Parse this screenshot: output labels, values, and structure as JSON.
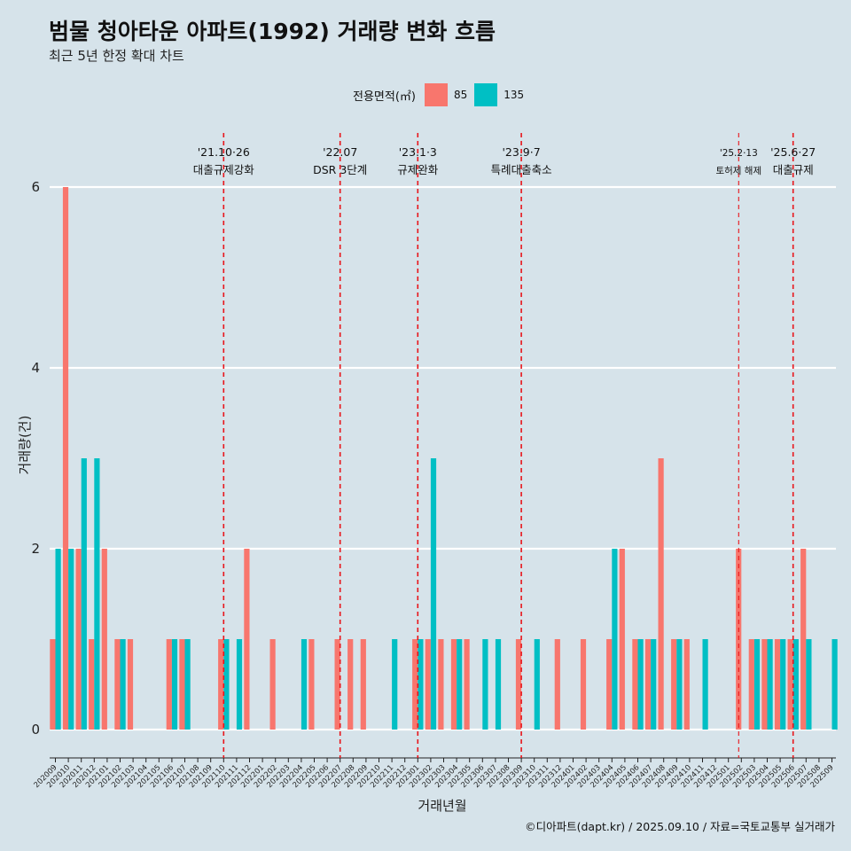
{
  "chart_data": {
    "type": "bar",
    "title": "범물 청아타운 아파트(1992) 거래량 변화 흐름",
    "subtitle": "최근 5년 한정 확대 차트",
    "xlabel": "거래년월",
    "ylabel": "거래량(건)",
    "ylim": [
      0,
      6
    ],
    "yticks": [
      0,
      2,
      4,
      6
    ],
    "grid": "horizontal",
    "legend": {
      "title": "전용면적(㎡)",
      "position": "top"
    },
    "categories": [
      "202009",
      "202010",
      "202011",
      "202012",
      "202101",
      "202102",
      "202103",
      "202104",
      "202105",
      "202106",
      "202107",
      "202108",
      "202109",
      "202110",
      "202111",
      "202112",
      "202201",
      "202202",
      "202203",
      "202204",
      "202205",
      "202206",
      "202207",
      "202208",
      "202209",
      "202210",
      "202211",
      "202212",
      "202301",
      "202302",
      "202303",
      "202304",
      "202305",
      "202306",
      "202307",
      "202308",
      "202309",
      "202310",
      "202311",
      "202312",
      "202401",
      "202402",
      "202403",
      "202404",
      "202405",
      "202406",
      "202407",
      "202408",
      "202409",
      "202410",
      "202411",
      "202412",
      "202501",
      "202502",
      "202503",
      "202504",
      "202505",
      "202506",
      "202507",
      "202508",
      "202509"
    ],
    "series": [
      {
        "name": "85",
        "color": "#f8766d",
        "values": [
          1,
          6,
          2,
          1,
          2,
          1,
          1,
          0,
          0,
          1,
          1,
          0,
          0,
          1,
          0,
          2,
          0,
          1,
          0,
          0,
          1,
          0,
          1,
          1,
          1,
          0,
          0,
          0,
          1,
          1,
          1,
          1,
          1,
          0,
          0,
          0,
          1,
          0,
          0,
          1,
          0,
          1,
          0,
          1,
          2,
          1,
          1,
          3,
          1,
          1,
          0,
          0,
          0,
          2,
          1,
          1,
          1,
          1,
          2,
          0,
          0
        ]
      },
      {
        "name": "135",
        "color": "#00bfc4",
        "values": [
          2,
          2,
          3,
          3,
          0,
          1,
          0,
          0,
          0,
          1,
          1,
          0,
          0,
          1,
          1,
          0,
          0,
          0,
          0,
          1,
          0,
          0,
          0,
          0,
          0,
          0,
          1,
          0,
          1,
          3,
          0,
          1,
          0,
          1,
          1,
          0,
          0,
          1,
          0,
          0,
          0,
          0,
          0,
          2,
          0,
          1,
          1,
          0,
          1,
          0,
          1,
          0,
          0,
          0,
          1,
          1,
          1,
          1,
          1,
          0,
          1
        ]
      }
    ],
    "annotations": [
      {
        "category": "202110",
        "date": "'21.10·26",
        "label": "대출규제강화",
        "small": false
      },
      {
        "category": "202207",
        "date": "'22.07",
        "label": "DSR 3단계",
        "small": false
      },
      {
        "category": "202301",
        "date": "'23.1·3",
        "label": "규제완화",
        "small": false
      },
      {
        "category": "202309",
        "date": "'23.9·7",
        "label": "특례대출축소",
        "small": false
      },
      {
        "category": "202502",
        "date": "'25.2·13",
        "label": "토허제 해제",
        "small": true
      },
      {
        "category": "202506",
        "date": "'25.6·27",
        "label": "대출규제",
        "small": false
      }
    ]
  },
  "caption": "©디아파트(dapt.kr) / 2025.09.10 / 자료=국토교통부 실거래가"
}
